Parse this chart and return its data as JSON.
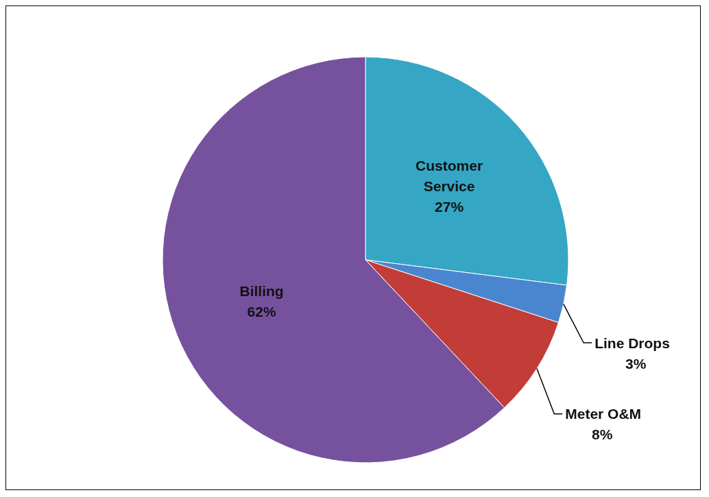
{
  "chart_data": {
    "type": "pie",
    "categories": [
      "Customer Service",
      "Line Drops",
      "Meter O&M",
      "Billing"
    ],
    "values": [
      27,
      3,
      8,
      62
    ],
    "value_labels": [
      "27%",
      "3%",
      "8%",
      "62%"
    ],
    "colors": [
      "#35a6c4",
      "#4a86d0",
      "#c23d38",
      "#76529e"
    ]
  }
}
